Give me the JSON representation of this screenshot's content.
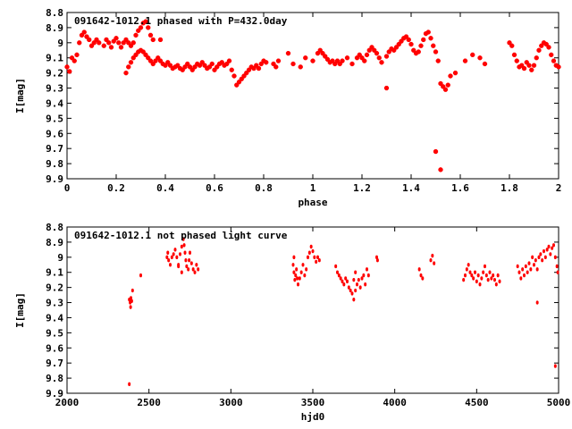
{
  "chart_data": [
    {
      "type": "scatter",
      "title": "091642-1012.1 phased with P=432.0day",
      "xlabel": "phase",
      "ylabel": "I[mag]",
      "xlim": [
        0,
        2
      ],
      "ylim": [
        8.8,
        9.9
      ],
      "y_inverted": true,
      "x_ticks": [
        0,
        0.2,
        0.4,
        0.6,
        0.8,
        1,
        1.2,
        1.4,
        1.6,
        1.8,
        2
      ],
      "y_ticks": [
        8.8,
        8.9,
        9,
        9.1,
        9.2,
        9.3,
        9.4,
        9.5,
        9.6,
        9.7,
        9.8,
        9.9
      ],
      "color": "#ff0000",
      "marker": "cross",
      "points": [
        [
          0.0,
          9.16
        ],
        [
          0.01,
          9.19
        ],
        [
          0.02,
          9.1
        ],
        [
          0.03,
          9.12
        ],
        [
          0.04,
          9.08
        ],
        [
          0.05,
          9.0
        ],
        [
          0.06,
          8.95
        ],
        [
          0.07,
          8.93
        ],
        [
          0.08,
          8.96
        ],
        [
          0.09,
          8.98
        ],
        [
          0.1,
          9.02
        ],
        [
          0.11,
          9.0
        ],
        [
          0.12,
          8.98
        ],
        [
          0.13,
          9.0
        ],
        [
          0.15,
          9.02
        ],
        [
          0.16,
          8.98
        ],
        [
          0.17,
          9.0
        ],
        [
          0.18,
          9.03
        ],
        [
          0.19,
          8.99
        ],
        [
          0.2,
          8.97
        ],
        [
          0.21,
          9.0
        ],
        [
          0.22,
          9.03
        ],
        [
          0.23,
          9.0
        ],
        [
          0.24,
          8.98
        ],
        [
          0.25,
          9.0
        ],
        [
          0.26,
          9.02
        ],
        [
          0.27,
          9.0
        ],
        [
          0.28,
          8.95
        ],
        [
          0.29,
          8.92
        ],
        [
          0.3,
          8.9
        ],
        [
          0.31,
          8.87
        ],
        [
          0.32,
          8.86
        ],
        [
          0.33,
          8.9
        ],
        [
          0.34,
          8.95
        ],
        [
          0.35,
          8.98
        ],
        [
          0.38,
          8.98
        ],
        [
          0.24,
          9.2
        ],
        [
          0.25,
          9.16
        ],
        [
          0.26,
          9.13
        ],
        [
          0.27,
          9.1
        ],
        [
          0.28,
          9.08
        ],
        [
          0.29,
          9.06
        ],
        [
          0.3,
          9.05
        ],
        [
          0.31,
          9.06
        ],
        [
          0.32,
          9.08
        ],
        [
          0.33,
          9.1
        ],
        [
          0.34,
          9.12
        ],
        [
          0.35,
          9.14
        ],
        [
          0.36,
          9.12
        ],
        [
          0.37,
          9.1
        ],
        [
          0.38,
          9.12
        ],
        [
          0.39,
          9.14
        ],
        [
          0.4,
          9.15
        ],
        [
          0.41,
          9.13
        ],
        [
          0.42,
          9.15
        ],
        [
          0.43,
          9.17
        ],
        [
          0.44,
          9.16
        ],
        [
          0.45,
          9.15
        ],
        [
          0.46,
          9.17
        ],
        [
          0.47,
          9.18
        ],
        [
          0.48,
          9.16
        ],
        [
          0.49,
          9.14
        ],
        [
          0.5,
          9.16
        ],
        [
          0.51,
          9.18
        ],
        [
          0.52,
          9.16
        ],
        [
          0.53,
          9.14
        ],
        [
          0.54,
          9.15
        ],
        [
          0.55,
          9.13
        ],
        [
          0.56,
          9.15
        ],
        [
          0.57,
          9.17
        ],
        [
          0.58,
          9.16
        ],
        [
          0.59,
          9.14
        ],
        [
          0.6,
          9.18
        ],
        [
          0.61,
          9.16
        ],
        [
          0.62,
          9.14
        ],
        [
          0.63,
          9.13
        ],
        [
          0.64,
          9.15
        ],
        [
          0.65,
          9.14
        ],
        [
          0.66,
          9.12
        ],
        [
          0.67,
          9.18
        ],
        [
          0.68,
          9.22
        ],
        [
          0.69,
          9.28
        ],
        [
          0.7,
          9.26
        ],
        [
          0.71,
          9.24
        ],
        [
          0.72,
          9.22
        ],
        [
          0.73,
          9.2
        ],
        [
          0.74,
          9.18
        ],
        [
          0.75,
          9.16
        ],
        [
          0.76,
          9.17
        ],
        [
          0.77,
          9.15
        ],
        [
          0.78,
          9.17
        ],
        [
          0.79,
          9.14
        ],
        [
          0.8,
          9.12
        ],
        [
          0.81,
          9.13
        ],
        [
          0.84,
          9.14
        ],
        [
          0.85,
          9.16
        ],
        [
          0.86,
          9.12
        ],
        [
          0.9,
          9.07
        ],
        [
          0.92,
          9.14
        ],
        [
          0.95,
          9.16
        ],
        [
          0.97,
          9.1
        ],
        [
          1.0,
          9.12
        ],
        [
          1.02,
          9.07
        ],
        [
          1.03,
          9.05
        ],
        [
          1.04,
          9.07
        ],
        [
          1.05,
          9.09
        ],
        [
          1.06,
          9.11
        ],
        [
          1.07,
          9.13
        ],
        [
          1.08,
          9.12
        ],
        [
          1.09,
          9.14
        ],
        [
          1.1,
          9.12
        ],
        [
          1.11,
          9.14
        ],
        [
          1.12,
          9.12
        ],
        [
          1.14,
          9.1
        ],
        [
          1.16,
          9.14
        ],
        [
          1.18,
          9.1
        ],
        [
          1.19,
          9.08
        ],
        [
          1.2,
          9.1
        ],
        [
          1.21,
          9.12
        ],
        [
          1.22,
          9.08
        ],
        [
          1.23,
          9.05
        ],
        [
          1.24,
          9.03
        ],
        [
          1.25,
          9.05
        ],
        [
          1.26,
          9.07
        ],
        [
          1.27,
          9.1
        ],
        [
          1.28,
          9.13
        ],
        [
          1.3,
          9.09
        ],
        [
          1.31,
          9.06
        ],
        [
          1.32,
          9.04
        ],
        [
          1.33,
          9.05
        ],
        [
          1.34,
          9.03
        ],
        [
          1.35,
          9.01
        ],
        [
          1.36,
          8.99
        ],
        [
          1.37,
          8.97
        ],
        [
          1.38,
          8.96
        ],
        [
          1.39,
          8.98
        ],
        [
          1.4,
          9.01
        ],
        [
          1.41,
          9.05
        ],
        [
          1.42,
          9.07
        ],
        [
          1.43,
          9.06
        ],
        [
          1.44,
          9.02
        ],
        [
          1.45,
          8.98
        ],
        [
          1.46,
          8.94
        ],
        [
          1.47,
          8.93
        ],
        [
          1.48,
          8.97
        ],
        [
          1.49,
          9.02
        ],
        [
          1.5,
          9.06
        ],
        [
          1.51,
          9.12
        ],
        [
          1.52,
          9.27
        ],
        [
          1.53,
          9.29
        ],
        [
          1.54,
          9.31
        ],
        [
          1.55,
          9.28
        ],
        [
          1.56,
          9.22
        ],
        [
          1.58,
          9.2
        ],
        [
          1.62,
          9.12
        ],
        [
          1.65,
          9.08
        ],
        [
          1.68,
          9.1
        ],
        [
          1.7,
          9.14
        ],
        [
          1.8,
          9.0
        ],
        [
          1.81,
          9.02
        ],
        [
          1.82,
          9.08
        ],
        [
          1.83,
          9.12
        ],
        [
          1.84,
          9.16
        ],
        [
          1.85,
          9.15
        ],
        [
          1.86,
          9.17
        ],
        [
          1.87,
          9.13
        ],
        [
          1.88,
          9.15
        ],
        [
          1.89,
          9.18
        ],
        [
          1.9,
          9.15
        ],
        [
          1.91,
          9.1
        ],
        [
          1.92,
          9.05
        ],
        [
          1.93,
          9.02
        ],
        [
          1.94,
          9.0
        ],
        [
          1.95,
          9.01
        ],
        [
          1.96,
          9.03
        ],
        [
          1.97,
          9.08
        ],
        [
          1.98,
          9.12
        ],
        [
          1.99,
          9.15
        ],
        [
          2.0,
          9.16
        ],
        [
          1.3,
          9.3
        ],
        [
          1.5,
          9.72
        ],
        [
          1.52,
          9.84
        ]
      ]
    },
    {
      "type": "scatter",
      "title": "091642-1012.1 not phased light curve",
      "xlabel": "hjd0",
      "ylabel": "I[mag]",
      "xlim": [
        2000,
        5000
      ],
      "ylim": [
        8.8,
        9.9
      ],
      "y_inverted": true,
      "x_ticks": [
        2000,
        2500,
        3000,
        3500,
        4000,
        4500,
        5000
      ],
      "y_ticks": [
        8.8,
        8.9,
        9,
        9.1,
        9.2,
        9.3,
        9.4,
        9.5,
        9.6,
        9.7,
        9.8,
        9.9
      ],
      "color": "#ff0000",
      "marker": "dot",
      "points": [
        [
          2380,
          9.28
        ],
        [
          2385,
          9.3
        ],
        [
          2388,
          9.33
        ],
        [
          2390,
          9.27
        ],
        [
          2395,
          9.29
        ],
        [
          2400,
          9.22
        ],
        [
          2450,
          9.12
        ],
        [
          2380,
          9.84
        ],
        [
          2610,
          9.0
        ],
        [
          2615,
          8.97
        ],
        [
          2620,
          9.02
        ],
        [
          2630,
          9.05
        ],
        [
          2640,
          9.0
        ],
        [
          2650,
          8.98
        ],
        [
          2660,
          8.95
        ],
        [
          2670,
          9.0
        ],
        [
          2680,
          9.05
        ],
        [
          2690,
          8.98
        ],
        [
          2700,
          8.93
        ],
        [
          2710,
          8.88
        ],
        [
          2715,
          8.92
        ],
        [
          2720,
          8.97
        ],
        [
          2725,
          9.02
        ],
        [
          2730,
          9.06
        ],
        [
          2740,
          9.08
        ],
        [
          2745,
          9.02
        ],
        [
          2750,
          8.97
        ],
        [
          2760,
          9.04
        ],
        [
          2770,
          9.08
        ],
        [
          2780,
          9.1
        ],
        [
          2790,
          9.05
        ],
        [
          2800,
          9.08
        ],
        [
          2700,
          9.1
        ],
        [
          2680,
          9.06
        ],
        [
          3380,
          9.05
        ],
        [
          3385,
          9.1
        ],
        [
          3390,
          9.15
        ],
        [
          3395,
          9.12
        ],
        [
          3400,
          9.08
        ],
        [
          3405,
          9.14
        ],
        [
          3410,
          9.18
        ],
        [
          3420,
          9.14
        ],
        [
          3430,
          9.1
        ],
        [
          3440,
          9.05
        ],
        [
          3450,
          9.12
        ],
        [
          3460,
          9.08
        ],
        [
          3470,
          9.0
        ],
        [
          3480,
          8.97
        ],
        [
          3490,
          8.93
        ],
        [
          3500,
          8.96
        ],
        [
          3510,
          9.0
        ],
        [
          3520,
          9.03
        ],
        [
          3530,
          9.0
        ],
        [
          3540,
          9.02
        ],
        [
          3385,
          9.0
        ],
        [
          3640,
          9.06
        ],
        [
          3650,
          9.1
        ],
        [
          3660,
          9.12
        ],
        [
          3670,
          9.14
        ],
        [
          3680,
          9.16
        ],
        [
          3690,
          9.18
        ],
        [
          3700,
          9.14
        ],
        [
          3710,
          9.16
        ],
        [
          3720,
          9.2
        ],
        [
          3730,
          9.22
        ],
        [
          3740,
          9.24
        ],
        [
          3750,
          9.28
        ],
        [
          3760,
          9.22
        ],
        [
          3770,
          9.18
        ],
        [
          3780,
          9.15
        ],
        [
          3790,
          9.2
        ],
        [
          3800,
          9.14
        ],
        [
          3810,
          9.12
        ],
        [
          3820,
          9.18
        ],
        [
          3830,
          9.08
        ],
        [
          3840,
          9.12
        ],
        [
          3750,
          9.15
        ],
        [
          3760,
          9.1
        ],
        [
          3890,
          9.0
        ],
        [
          3895,
          9.02
        ],
        [
          4150,
          9.08
        ],
        [
          4160,
          9.12
        ],
        [
          4170,
          9.14
        ],
        [
          4220,
          9.02
        ],
        [
          4230,
          8.99
        ],
        [
          4240,
          9.04
        ],
        [
          4420,
          9.15
        ],
        [
          4430,
          9.12
        ],
        [
          4440,
          9.08
        ],
        [
          4450,
          9.05
        ],
        [
          4460,
          9.1
        ],
        [
          4470,
          9.12
        ],
        [
          4480,
          9.14
        ],
        [
          4490,
          9.1
        ],
        [
          4500,
          9.16
        ],
        [
          4510,
          9.12
        ],
        [
          4520,
          9.18
        ],
        [
          4530,
          9.14
        ],
        [
          4540,
          9.1
        ],
        [
          4550,
          9.06
        ],
        [
          4560,
          9.12
        ],
        [
          4570,
          9.15
        ],
        [
          4580,
          9.1
        ],
        [
          4590,
          9.14
        ],
        [
          4600,
          9.12
        ],
        [
          4610,
          9.15
        ],
        [
          4620,
          9.18
        ],
        [
          4630,
          9.12
        ],
        [
          4640,
          9.16
        ],
        [
          4750,
          9.06
        ],
        [
          4760,
          9.1
        ],
        [
          4770,
          9.14
        ],
        [
          4780,
          9.08
        ],
        [
          4790,
          9.12
        ],
        [
          4800,
          9.06
        ],
        [
          4810,
          9.1
        ],
        [
          4820,
          9.04
        ],
        [
          4830,
          9.08
        ],
        [
          4840,
          9.0
        ],
        [
          4850,
          9.05
        ],
        [
          4860,
          9.02
        ],
        [
          4870,
          9.08
        ],
        [
          4880,
          9.0
        ],
        [
          4890,
          8.98
        ],
        [
          4900,
          9.02
        ],
        [
          4910,
          8.96
        ],
        [
          4920,
          9.0
        ],
        [
          4930,
          8.95
        ],
        [
          4940,
          8.93
        ],
        [
          4950,
          8.98
        ],
        [
          4960,
          8.94
        ],
        [
          4970,
          8.92
        ],
        [
          4980,
          9.0
        ],
        [
          4990,
          9.06
        ],
        [
          4995,
          9.1
        ],
        [
          4870,
          9.3
        ],
        [
          4980,
          9.72
        ]
      ]
    }
  ]
}
